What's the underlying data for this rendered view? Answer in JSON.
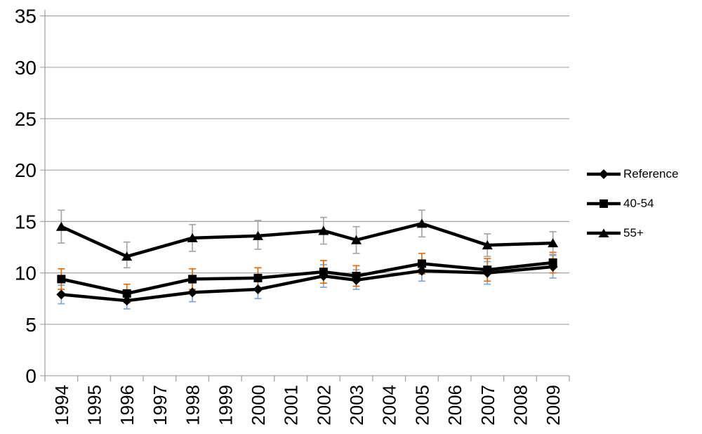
{
  "chart_data": {
    "type": "line",
    "title": "",
    "xlabel": "",
    "ylabel": "",
    "categories": [
      "1994",
      "1995",
      "1996",
      "1997",
      "1998",
      "1999",
      "2000",
      "2001",
      "2002",
      "2003",
      "2004",
      "2005",
      "2006",
      "2007",
      "2008",
      "2009"
    ],
    "ylim": [
      0,
      35
    ],
    "ytick_step": 5,
    "ytick_labels": [
      "0",
      "5",
      "10",
      "15",
      "20",
      "25",
      "30",
      "35"
    ],
    "grid": "horizontal",
    "legend_position": "right",
    "error_bars": true,
    "series": [
      {
        "name": "Reference",
        "marker": "diamond",
        "line_color": "#000000",
        "error_bar_color": "#7FA8DC",
        "points": [
          {
            "x": "1994",
            "y": 7.9,
            "lo": 7.0,
            "hi": 8.8
          },
          {
            "x": "1996",
            "y": 7.3,
            "lo": 6.5,
            "hi": 8.1
          },
          {
            "x": "1998",
            "y": 8.1,
            "lo": 7.2,
            "hi": 9.0
          },
          {
            "x": "2000",
            "y": 8.4,
            "lo": 7.5,
            "hi": 9.3
          },
          {
            "x": "2002",
            "y": 9.7,
            "lo": 8.6,
            "hi": 10.8
          },
          {
            "x": "2003",
            "y": 9.3,
            "lo": 8.4,
            "hi": 10.3
          },
          {
            "x": "2005",
            "y": 10.2,
            "lo": 9.2,
            "hi": 11.2
          },
          {
            "x": "2007",
            "y": 10.0,
            "lo": 8.9,
            "hi": 11.1
          },
          {
            "x": "2009",
            "y": 10.6,
            "lo": 9.5,
            "hi": 11.7
          }
        ]
      },
      {
        "name": "40-54",
        "marker": "square",
        "line_color": "#000000",
        "error_bar_color": "#E36C09",
        "points": [
          {
            "x": "1994",
            "y": 9.4,
            "lo": 8.4,
            "hi": 10.4
          },
          {
            "x": "1996",
            "y": 8.0,
            "lo": 7.1,
            "hi": 8.9
          },
          {
            "x": "1998",
            "y": 9.4,
            "lo": 8.4,
            "hi": 10.4
          },
          {
            "x": "2000",
            "y": 9.5,
            "lo": 8.5,
            "hi": 10.5
          },
          {
            "x": "2002",
            "y": 10.1,
            "lo": 9.0,
            "hi": 11.2
          },
          {
            "x": "2003",
            "y": 9.7,
            "lo": 8.7,
            "hi": 10.7
          },
          {
            "x": "2005",
            "y": 10.9,
            "lo": 9.9,
            "hi": 11.9
          },
          {
            "x": "2007",
            "y": 10.3,
            "lo": 9.2,
            "hi": 11.4
          },
          {
            "x": "2009",
            "y": 11.0,
            "lo": 10.0,
            "hi": 12.0
          }
        ]
      },
      {
        "name": "55+",
        "marker": "triangle",
        "line_color": "#000000",
        "error_bar_color": "#A6A6A6",
        "points": [
          {
            "x": "1994",
            "y": 14.5,
            "lo": 12.9,
            "hi": 16.1
          },
          {
            "x": "1996",
            "y": 11.6,
            "lo": 10.5,
            "hi": 13.0
          },
          {
            "x": "1998",
            "y": 13.4,
            "lo": 12.1,
            "hi": 14.7
          },
          {
            "x": "2000",
            "y": 13.6,
            "lo": 12.3,
            "hi": 15.1
          },
          {
            "x": "2002",
            "y": 14.1,
            "lo": 12.8,
            "hi": 15.4
          },
          {
            "x": "2003",
            "y": 13.2,
            "lo": 11.9,
            "hi": 14.5
          },
          {
            "x": "2005",
            "y": 14.8,
            "lo": 13.5,
            "hi": 16.1
          },
          {
            "x": "2007",
            "y": 12.7,
            "lo": 11.6,
            "hi": 13.8
          },
          {
            "x": "2009",
            "y": 12.9,
            "lo": 11.8,
            "hi": 14.0
          }
        ]
      }
    ]
  },
  "colors": {
    "background": "#FFFFFF",
    "gridline": "#A6A6A6",
    "axis": "#9B9B9B",
    "tick": "#9B9B9B",
    "series_line": "#000000",
    "label_text": "#000000"
  }
}
